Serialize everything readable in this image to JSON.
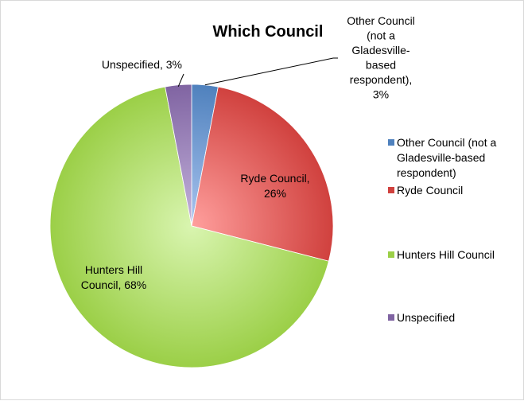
{
  "chart_data": {
    "type": "pie",
    "title": "Which Council",
    "legend_position": "right",
    "slices": [
      {
        "name": "Other Council (not a Gladesville-based respondent)",
        "value": 3,
        "label_lines": [
          "Other Council",
          "(not a",
          "Gladesville-",
          "based",
          "respondent),",
          "3%"
        ],
        "legend_lines": [
          "Other Council (not a",
          "Gladesville-based",
          "respondent)"
        ],
        "color": "#4f81bd",
        "color_light": "#a9c4ef"
      },
      {
        "name": "Ryde Council",
        "value": 26,
        "label_lines": [
          "Ryde Council,",
          "26%"
        ],
        "legend_lines": [
          "Ryde Council"
        ],
        "color": "#d0413e",
        "color_light": "#ff9f9d"
      },
      {
        "name": "Hunters Hill Council",
        "value": 68,
        "label_lines": [
          "Hunters Hill",
          "Council, 68%"
        ],
        "legend_lines": [
          "Hunters Hill Council"
        ],
        "color": "#9bcf47",
        "color_light": "#d9f5b0"
      },
      {
        "name": "Unspecified",
        "value": 3,
        "label_lines": [
          "Unspecified, 3%"
        ],
        "legend_lines": [
          "Unspecified"
        ],
        "color": "#8064a2",
        "color_light": "#c4b3dc"
      }
    ]
  }
}
